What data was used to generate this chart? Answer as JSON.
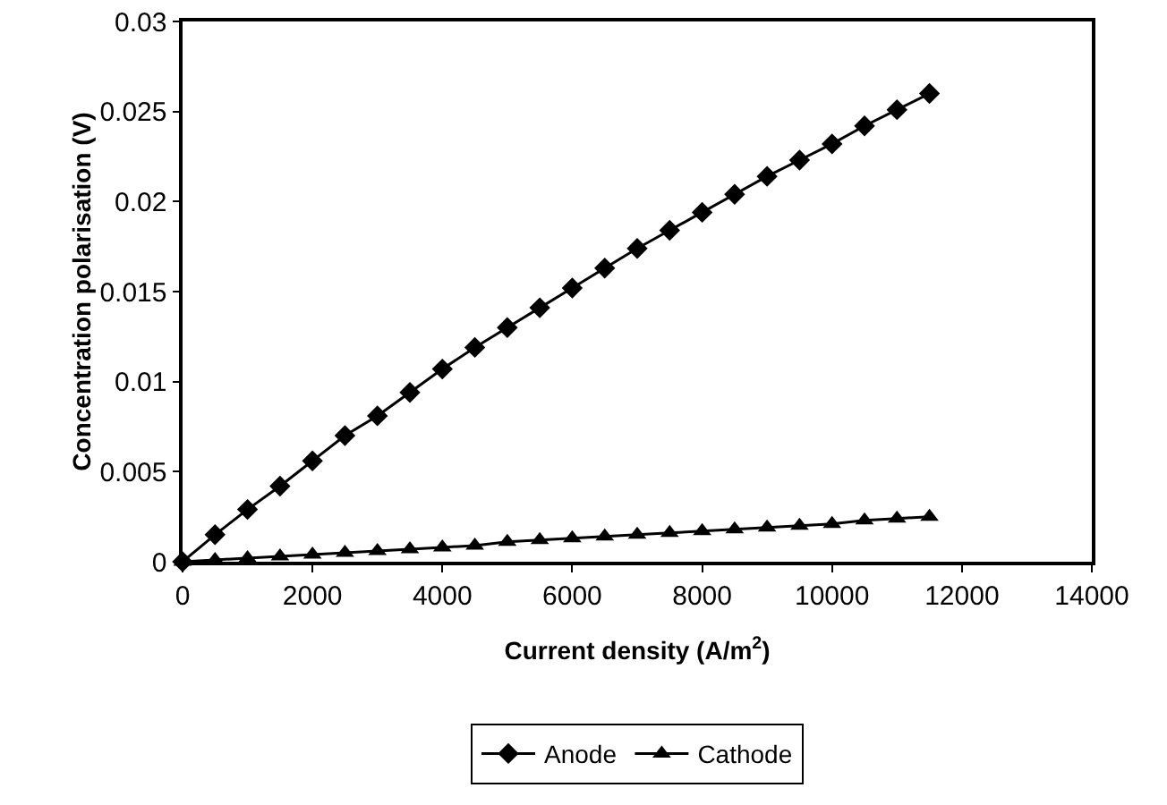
{
  "chart_data": {
    "type": "line",
    "xlabel": "Current density (A/m$^{2}$)",
    "ylabel": "Concentration polarisation (V)",
    "x": [
      0,
      500,
      1000,
      1500,
      2000,
      2500,
      3000,
      3500,
      4000,
      4500,
      5000,
      5500,
      6000,
      6500,
      7000,
      7500,
      8000,
      8500,
      9000,
      9500,
      10000,
      10500,
      11000,
      11500
    ],
    "series": [
      {
        "name": "Anode",
        "color": "#000000",
        "marker": "diamond",
        "values": [
          0,
          0.0015,
          0.0029,
          0.0042,
          0.0056,
          0.007,
          0.0081,
          0.0094,
          0.0107,
          0.0119,
          0.013,
          0.0141,
          0.0152,
          0.0163,
          0.0174,
          0.0184,
          0.0194,
          0.0204,
          0.0214,
          0.0223,
          0.0232,
          0.0242,
          0.0251,
          0.026
        ]
      },
      {
        "name": "Cathode",
        "color": "#000000",
        "marker": "triangle",
        "values": [
          0,
          0.0001,
          0.0002,
          0.0003,
          0.0004,
          0.0005,
          0.0006,
          0.0007,
          0.0008,
          0.0009,
          0.0011,
          0.0012,
          0.0013,
          0.0014,
          0.0015,
          0.0016,
          0.0017,
          0.0018,
          0.0019,
          0.002,
          0.0021,
          0.0023,
          0.0024,
          0.0025
        ]
      }
    ],
    "xlim": [
      0,
      14000
    ],
    "xticks": [
      0,
      2000,
      4000,
      6000,
      8000,
      10000,
      12000,
      14000
    ],
    "ylim": [
      0,
      0.03
    ],
    "yticks": [
      0,
      0.005,
      0.01,
      0.015,
      0.02,
      0.025,
      0.03
    ],
    "grid": false,
    "legend": "bottom",
    "line_style": "solid"
  }
}
